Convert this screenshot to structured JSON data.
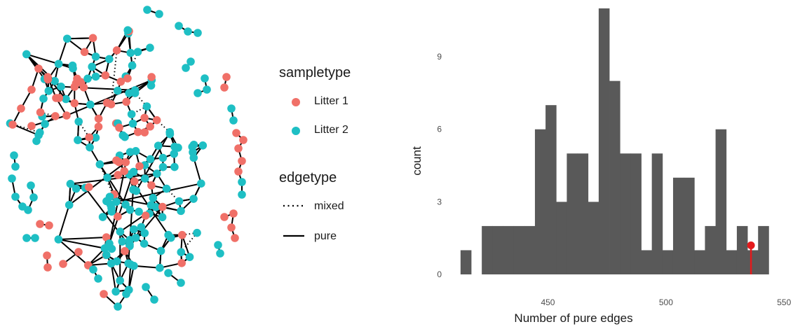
{
  "legend": {
    "sampletype_title": "sampletype",
    "sampletype_items": [
      {
        "label": "Litter 1",
        "color": "#F07068"
      },
      {
        "label": "Litter 2",
        "color": "#1EBFC4"
      }
    ],
    "edgetype_title": "edgetype",
    "edgetype_items": [
      {
        "label": "mixed",
        "style": "dotted"
      },
      {
        "label": "pure",
        "style": "solid"
      }
    ]
  },
  "chart_data": {
    "type": "bar",
    "subtype": "histogram",
    "xlabel": "Number of pure edges",
    "ylabel": "count",
    "xlim": [
      408,
      552
    ],
    "ylim": [
      0,
      11
    ],
    "xticks": [
      450,
      500,
      550
    ],
    "yticks": [
      0,
      3,
      6,
      9
    ],
    "bar_color": "#595959",
    "bins": [
      {
        "start": 413.0,
        "end": 417.5,
        "count": 1
      },
      {
        "start": 417.5,
        "end": 422.0,
        "count": 0
      },
      {
        "start": 422.0,
        "end": 426.5,
        "count": 2
      },
      {
        "start": 426.5,
        "end": 431.0,
        "count": 2
      },
      {
        "start": 431.0,
        "end": 435.5,
        "count": 2
      },
      {
        "start": 435.5,
        "end": 440.0,
        "count": 2
      },
      {
        "start": 440.0,
        "end": 444.5,
        "count": 2
      },
      {
        "start": 444.5,
        "end": 449.0,
        "count": 6
      },
      {
        "start": 449.0,
        "end": 453.5,
        "count": 7
      },
      {
        "start": 453.5,
        "end": 458.0,
        "count": 3
      },
      {
        "start": 458.0,
        "end": 462.5,
        "count": 5
      },
      {
        "start": 462.5,
        "end": 467.0,
        "count": 5
      },
      {
        "start": 467.0,
        "end": 471.5,
        "count": 3
      },
      {
        "start": 471.5,
        "end": 476.0,
        "count": 11
      },
      {
        "start": 476.0,
        "end": 480.5,
        "count": 8
      },
      {
        "start": 480.5,
        "end": 485.0,
        "count": 5
      },
      {
        "start": 485.0,
        "end": 489.5,
        "count": 5
      },
      {
        "start": 489.5,
        "end": 494.0,
        "count": 1
      },
      {
        "start": 494.0,
        "end": 498.5,
        "count": 5
      },
      {
        "start": 498.5,
        "end": 503.0,
        "count": 1
      },
      {
        "start": 503.0,
        "end": 507.5,
        "count": 4
      },
      {
        "start": 507.5,
        "end": 512.0,
        "count": 4
      },
      {
        "start": 512.0,
        "end": 516.5,
        "count": 1
      },
      {
        "start": 516.5,
        "end": 521.0,
        "count": 2
      },
      {
        "start": 521.0,
        "end": 525.5,
        "count": 6
      },
      {
        "start": 525.5,
        "end": 530.0,
        "count": 1
      },
      {
        "start": 530.0,
        "end": 534.5,
        "count": 2
      },
      {
        "start": 534.5,
        "end": 539.0,
        "count": 1
      },
      {
        "start": 539.0,
        "end": 543.5,
        "count": 2
      }
    ],
    "marker": {
      "x": 536,
      "y": 1.2,
      "color": "#E41A1C"
    }
  }
}
